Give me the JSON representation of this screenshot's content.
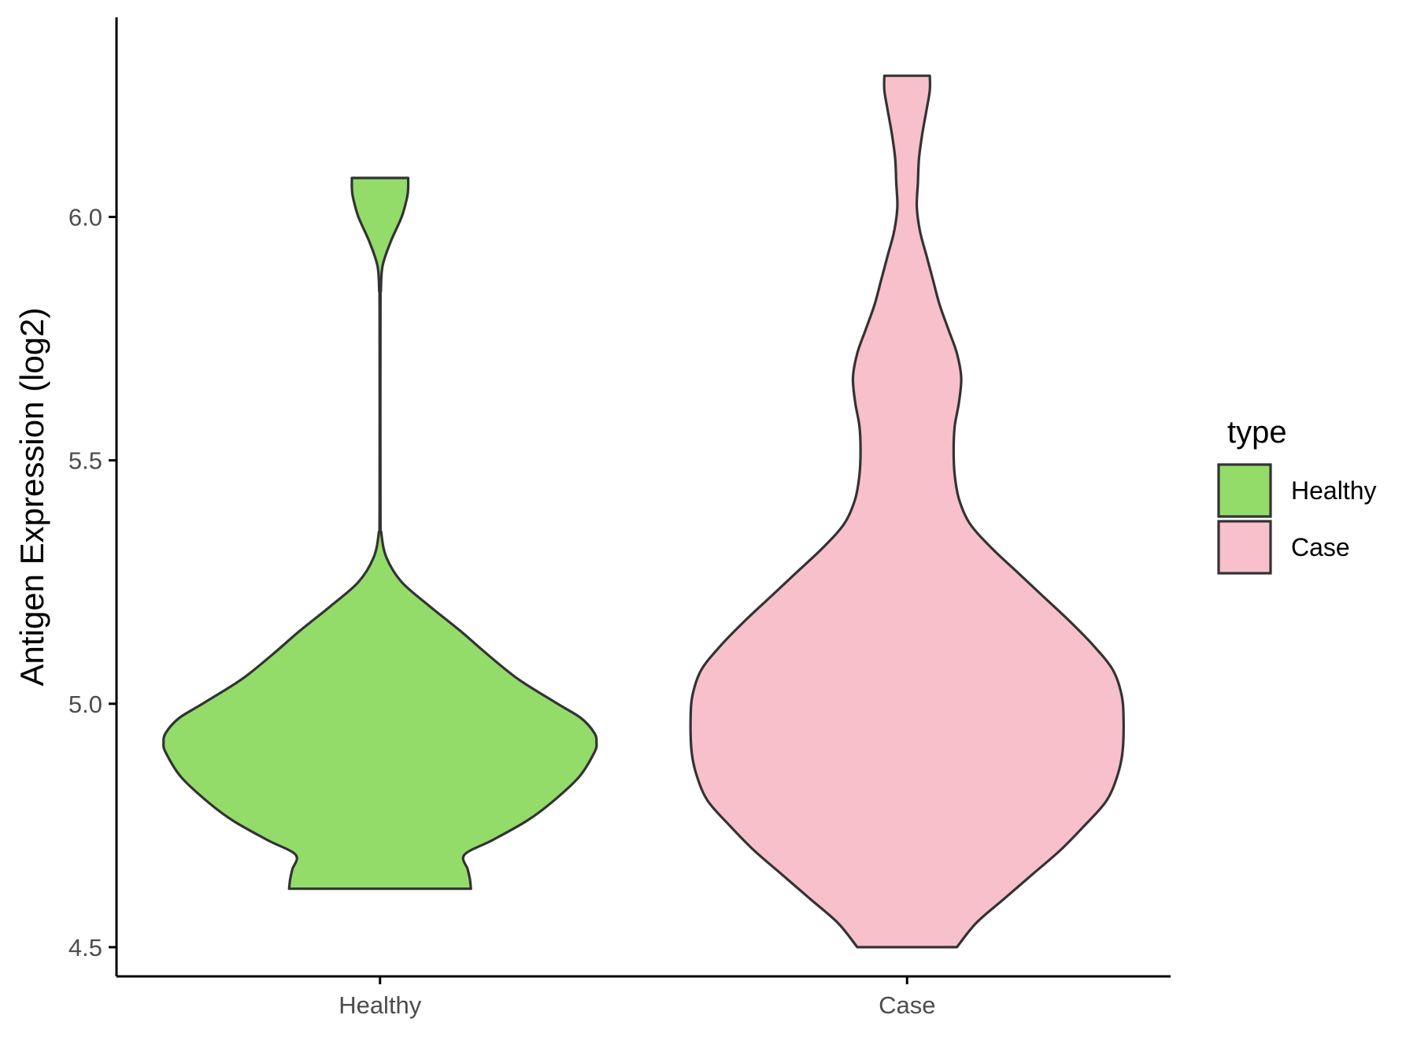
{
  "chart_data": {
    "type": "violin",
    "title": "",
    "xlabel": "",
    "ylabel": "Antigen Expression (log2)",
    "ylim": [
      4.44,
      6.41
    ],
    "yticks": [
      4.5,
      5.0,
      5.5,
      6.0
    ],
    "ytick_labels": [
      "4.5",
      "5.0",
      "5.5",
      "6.0"
    ],
    "categories": [
      "Healthy",
      "Case"
    ],
    "grid": false,
    "legend": {
      "title": "type",
      "placement": "right",
      "entries": [
        "Healthy",
        "Case"
      ]
    },
    "series": [
      {
        "name": "Healthy",
        "color": "#93dc6a",
        "min": 4.62,
        "max": 6.08,
        "profile": [
          [
            4.62,
            0.42
          ],
          [
            4.64,
            0.415
          ],
          [
            4.66,
            0.405
          ],
          [
            4.69,
            0.39
          ],
          [
            4.72,
            0.52
          ],
          [
            4.76,
            0.68
          ],
          [
            4.8,
            0.8
          ],
          [
            4.85,
            0.92
          ],
          [
            4.9,
            0.99
          ],
          [
            4.92,
            1.0
          ],
          [
            4.94,
            0.99
          ],
          [
            4.97,
            0.93
          ],
          [
            5.0,
            0.82
          ],
          [
            5.05,
            0.64
          ],
          [
            5.1,
            0.5
          ],
          [
            5.15,
            0.37
          ],
          [
            5.2,
            0.23
          ],
          [
            5.25,
            0.1
          ],
          [
            5.3,
            0.03
          ],
          [
            5.35,
            0.006
          ],
          [
            5.4,
            0.002
          ],
          [
            5.8,
            0.002
          ],
          [
            5.85,
            0.004
          ],
          [
            5.9,
            0.012
          ],
          [
            5.95,
            0.05
          ],
          [
            6.0,
            0.1
          ],
          [
            6.04,
            0.125
          ],
          [
            6.06,
            0.13
          ],
          [
            6.08,
            0.13
          ]
        ]
      },
      {
        "name": "Case",
        "color": "#f8c0cb",
        "min": 4.5,
        "max": 6.29,
        "profile": [
          [
            4.5,
            0.23
          ],
          [
            4.55,
            0.32
          ],
          [
            4.6,
            0.45
          ],
          [
            4.65,
            0.58
          ],
          [
            4.7,
            0.71
          ],
          [
            4.75,
            0.82
          ],
          [
            4.8,
            0.92
          ],
          [
            4.85,
            0.97
          ],
          [
            4.9,
            0.995
          ],
          [
            4.97,
            1.0
          ],
          [
            5.02,
            0.99
          ],
          [
            5.07,
            0.95
          ],
          [
            5.12,
            0.86
          ],
          [
            5.17,
            0.75
          ],
          [
            5.22,
            0.63
          ],
          [
            5.27,
            0.51
          ],
          [
            5.32,
            0.39
          ],
          [
            5.37,
            0.29
          ],
          [
            5.42,
            0.24
          ],
          [
            5.47,
            0.22
          ],
          [
            5.52,
            0.215
          ],
          [
            5.57,
            0.22
          ],
          [
            5.62,
            0.24
          ],
          [
            5.67,
            0.25
          ],
          [
            5.72,
            0.23
          ],
          [
            5.77,
            0.19
          ],
          [
            5.82,
            0.15
          ],
          [
            5.87,
            0.12
          ],
          [
            5.92,
            0.09
          ],
          [
            5.97,
            0.06
          ],
          [
            6.02,
            0.045
          ],
          [
            6.07,
            0.05
          ],
          [
            6.12,
            0.055
          ],
          [
            6.17,
            0.07
          ],
          [
            6.22,
            0.09
          ],
          [
            6.26,
            0.105
          ],
          [
            6.29,
            0.105
          ]
        ]
      }
    ],
    "stroke_color": "#333333"
  }
}
